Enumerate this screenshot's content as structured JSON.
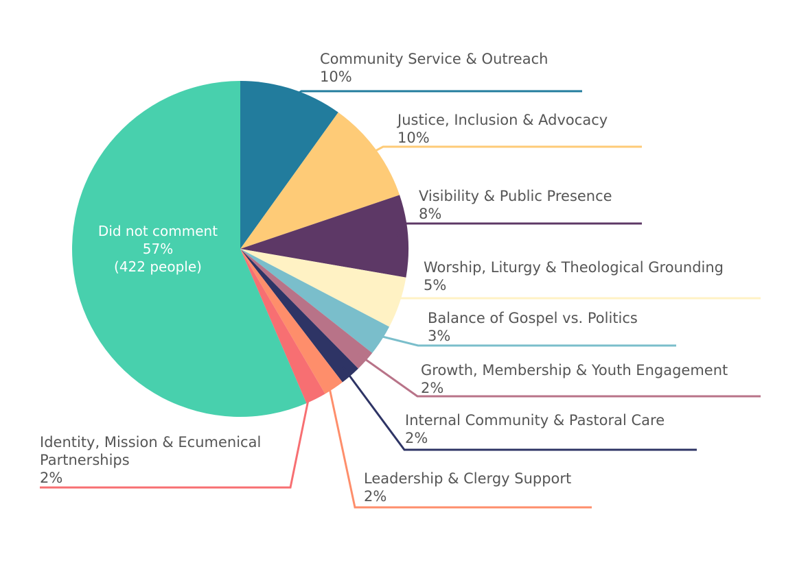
{
  "chart_data": {
    "type": "pie",
    "title": "",
    "slices": [
      {
        "label": "Community Service & Outreach",
        "value": 10,
        "display": "10%",
        "color": "#227c9d"
      },
      {
        "label": "Justice, Inclusion & Advocacy",
        "value": 10,
        "display": "10%",
        "color": "#fecb77"
      },
      {
        "label": "Visibility & Public Presence",
        "value": 8,
        "display": "8%",
        "color": "#5d3866"
      },
      {
        "label": "Worship, Liturgy & Theological Grounding",
        "value": 5,
        "display": "5%",
        "color": "#fff2c4"
      },
      {
        "label": "Balance of Gospel vs. Politics",
        "value": 3,
        "display": "3%",
        "color": "#7abecb"
      },
      {
        "label": "Growth, Membership & Youth Engagement",
        "value": 2,
        "display": "2%",
        "color": "#b87388"
      },
      {
        "label": "Internal Community & Pastoral Care",
        "value": 2,
        "display": "2%",
        "color": "#2e3465"
      },
      {
        "label": "Leadership & Clergy Support",
        "value": 2,
        "display": "2%",
        "color": "#fe8e6b"
      },
      {
        "label": "Identity, Mission & Ecumenical Partnerships",
        "value": 2,
        "display": "2%",
        "color": "#f76f72"
      },
      {
        "label": "Did not comment",
        "value": 57,
        "display": "57%",
        "note": "(422 people)",
        "color": "#48d0ad"
      }
    ]
  }
}
